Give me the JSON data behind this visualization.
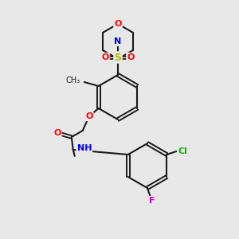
{
  "bg_color": "#e8e8e8",
  "bond_color": "#1a1a1a",
  "colors": {
    "O": "#ff0000",
    "N": "#0000ee",
    "S": "#bbbb00",
    "Cl": "#00bb00",
    "F": "#cc00cc",
    "C": "#1a1a1a"
  },
  "figsize": [
    3.0,
    3.0
  ],
  "dpi": 100
}
